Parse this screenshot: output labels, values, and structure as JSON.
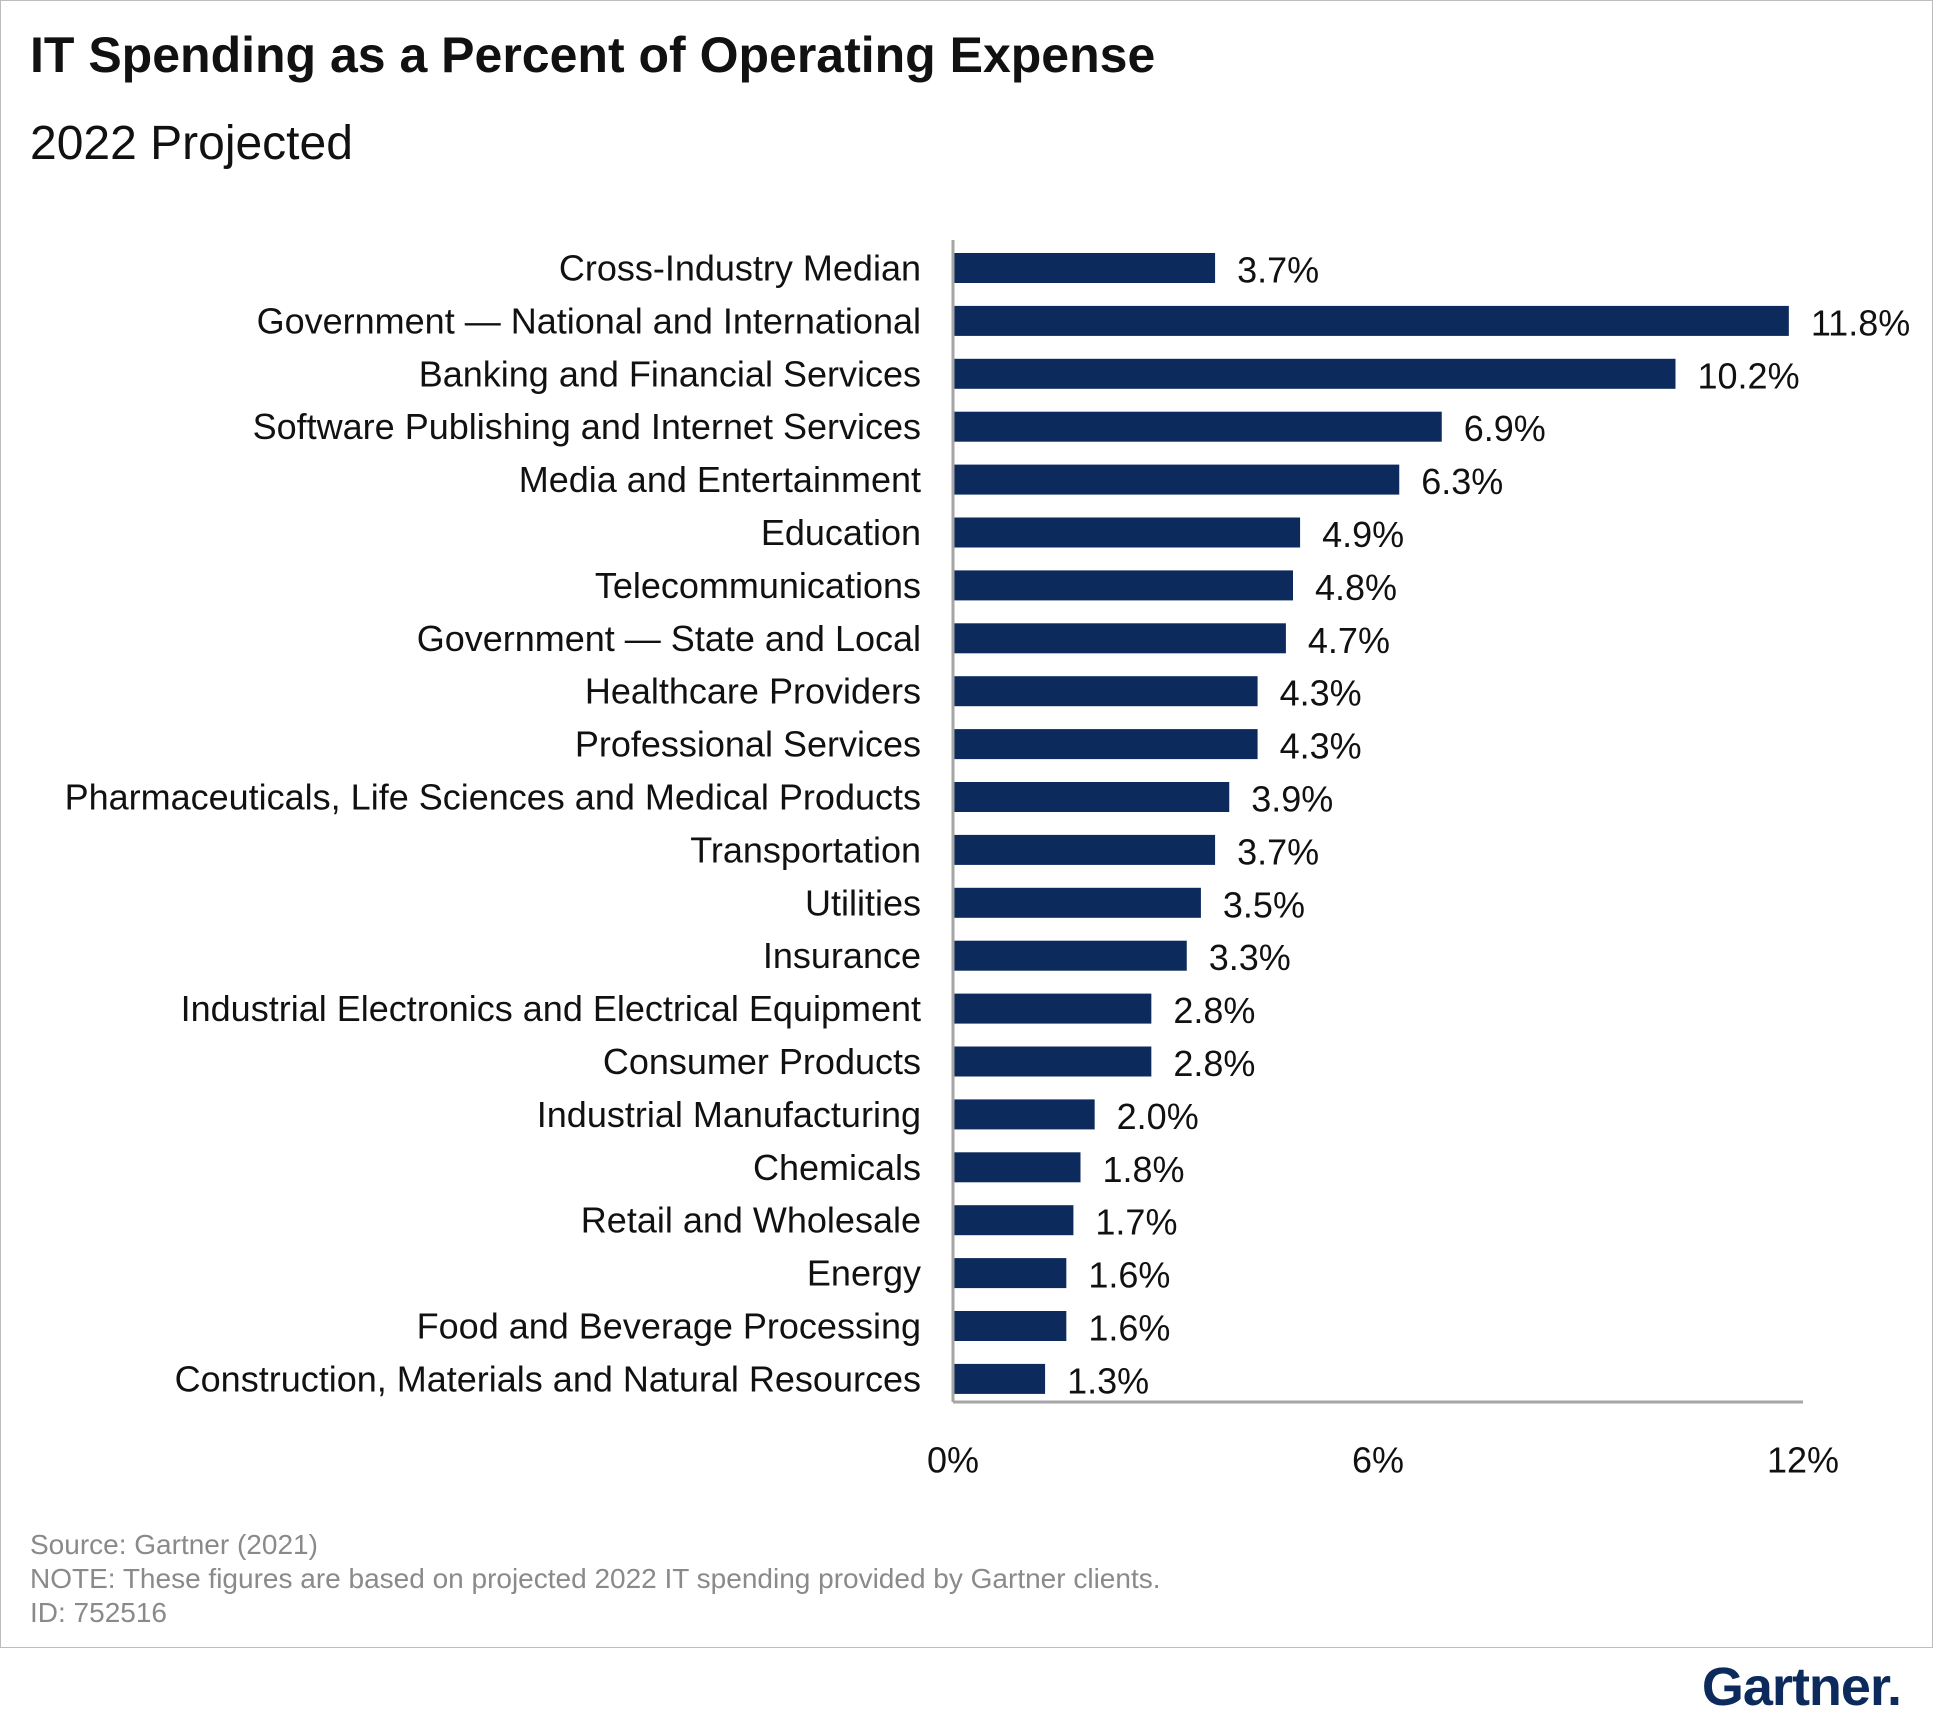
{
  "title": "IT Spending as a Percent of Operating Expense",
  "subtitle": "2022 Projected",
  "footnotes": {
    "source": "Source: Gartner (2021)",
    "note": "NOTE: These figures are based on projected 2022 IT spending provided by Gartner clients.",
    "id": "ID: 752516"
  },
  "logo": {
    "text": "Gartner",
    "mark": "."
  },
  "colors": {
    "bar": "#0c2a5c",
    "axis": "#a6a6a6",
    "text": "#111111",
    "footnote": "#8a8a8a"
  },
  "chart_data": {
    "type": "bar",
    "orientation": "horizontal",
    "title": "IT Spending as a Percent of Operating Expense",
    "subtitle": "2022 Projected",
    "xlabel": "",
    "ylabel": "",
    "xlim": [
      0,
      12
    ],
    "x_ticks": [
      0,
      6,
      12
    ],
    "x_tick_labels": [
      "0%",
      "6%",
      "12%"
    ],
    "grid": false,
    "legend": "none",
    "categories": [
      "Cross-Industry Median",
      "Government — National and International",
      "Banking and Financial Services",
      "Software Publishing and Internet Services",
      "Media and Entertainment",
      "Education",
      "Telecommunications",
      "Government — State and Local",
      "Healthcare Providers",
      "Professional Services",
      "Pharmaceuticals, Life Sciences and Medical Products",
      "Transportation",
      "Utilities",
      "Insurance",
      "Industrial Electronics and Electrical Equipment",
      "Consumer Products",
      "Industrial Manufacturing",
      "Chemicals",
      "Retail and Wholesale",
      "Energy",
      "Food and Beverage Processing",
      "Construction, Materials and Natural Resources"
    ],
    "values": [
      3.7,
      11.8,
      10.2,
      6.9,
      6.3,
      4.9,
      4.8,
      4.7,
      4.3,
      4.3,
      3.9,
      3.7,
      3.5,
      3.3,
      2.8,
      2.8,
      2.0,
      1.8,
      1.7,
      1.6,
      1.6,
      1.3
    ],
    "value_labels": [
      "3.7%",
      "11.8%",
      "10.2%",
      "6.9%",
      "6.3%",
      "4.9%",
      "4.8%",
      "4.7%",
      "4.3%",
      "4.3%",
      "3.9%",
      "3.7%",
      "3.5%",
      "3.3%",
      "2.8%",
      "2.8%",
      "2.0%",
      "1.8%",
      "1.7%",
      "1.6%",
      "1.6%",
      "1.3%"
    ]
  }
}
